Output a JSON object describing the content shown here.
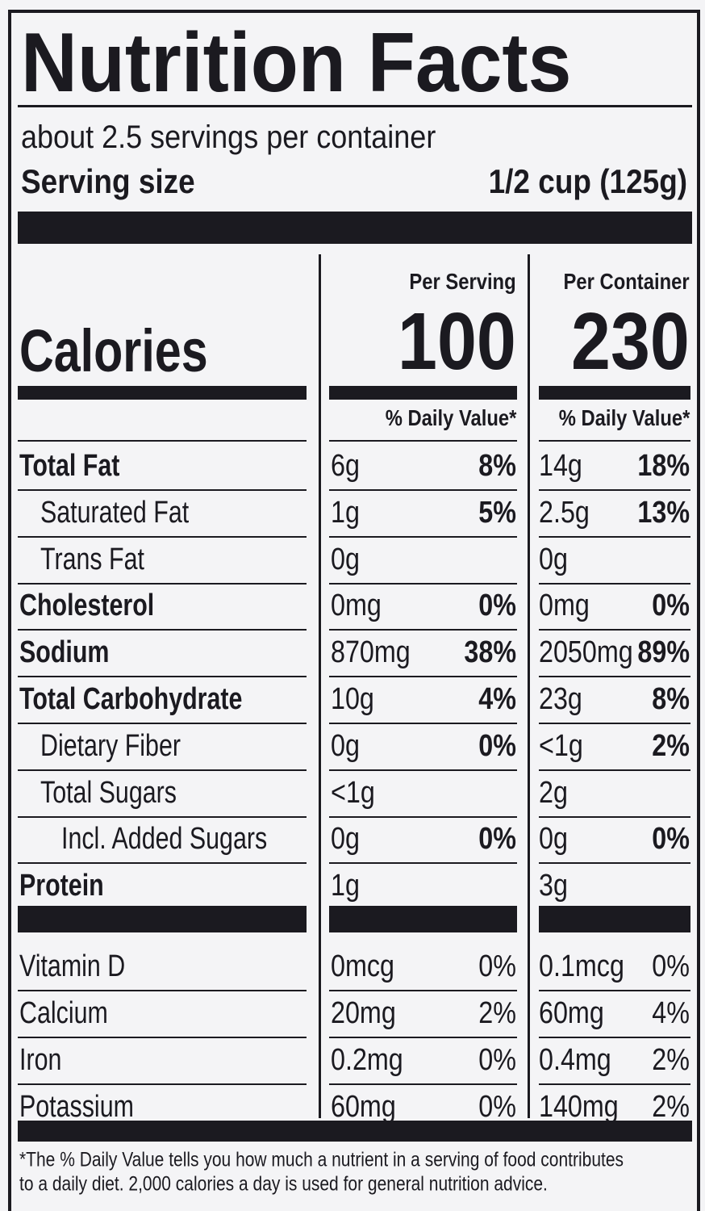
{
  "title": "Nutrition Facts",
  "servings": "about 2.5 servings per container",
  "serving_size": {
    "label": "Serving size",
    "value": "1/2 cup (125g)"
  },
  "calories_label": "Calories",
  "columns": [
    {
      "heading": "Per Serving",
      "calories": 100,
      "dv_heading": "% Daily Value*"
    },
    {
      "heading": "Per Container",
      "calories": 230,
      "dv_heading": "% Daily Value*"
    }
  ],
  "nutrients": [
    {
      "name": "Total Fat",
      "bold": true,
      "indent": 0,
      "per_serving": [
        "6g",
        "8%"
      ],
      "per_container": [
        "14g",
        "18%"
      ]
    },
    {
      "name": "Saturated Fat",
      "bold": false,
      "indent": 1,
      "per_serving": [
        "1g",
        "5%"
      ],
      "per_container": [
        "2.5g",
        "13%"
      ]
    },
    {
      "name": "Trans Fat",
      "bold": false,
      "indent": 1,
      "per_serving": [
        "0g"
      ],
      "per_container": [
        "0g"
      ]
    },
    {
      "name": "Cholesterol",
      "bold": true,
      "indent": 0,
      "per_serving": [
        "0mg",
        "0%"
      ],
      "per_container": [
        "0mg",
        "0%"
      ]
    },
    {
      "name": "Sodium",
      "bold": true,
      "indent": 0,
      "per_serving": [
        "870mg",
        "38%"
      ],
      "per_container": [
        "2050mg",
        "89%"
      ]
    },
    {
      "name": "Total Carbohydrate",
      "bold": true,
      "indent": 0,
      "per_serving": [
        "10g",
        "4%"
      ],
      "per_container": [
        "23g",
        "8%"
      ]
    },
    {
      "name": "Dietary Fiber",
      "bold": false,
      "indent": 1,
      "per_serving": [
        "0g",
        "0%"
      ],
      "per_container": [
        "<1g",
        "2%"
      ]
    },
    {
      "name": "Total Sugars",
      "bold": false,
      "indent": 1,
      "per_serving": [
        "<1g"
      ],
      "per_container": [
        "2g"
      ]
    },
    {
      "name": "Incl. Added Sugars",
      "bold": false,
      "indent": 2,
      "per_serving": [
        "0g",
        "0%"
      ],
      "per_container": [
        "0g",
        "0%"
      ]
    },
    {
      "name": "Protein",
      "bold": true,
      "indent": 0,
      "per_serving": [
        "1g"
      ],
      "per_container": [
        "3g"
      ]
    }
  ],
  "vitamins": [
    {
      "name": "Vitamin D",
      "per_serving": [
        "0mcg",
        "0%"
      ],
      "per_container": [
        "0.1mcg",
        "0%"
      ]
    },
    {
      "name": "Calcium",
      "per_serving": [
        "20mg",
        "2%"
      ],
      "per_container": [
        "60mg",
        "4%"
      ]
    },
    {
      "name": "Iron",
      "per_serving": [
        "0.2mg",
        "0%"
      ],
      "per_container": [
        "0.4mg",
        "2%"
      ]
    },
    {
      "name": "Potassium",
      "per_serving": [
        "60mg",
        "0%"
      ],
      "per_container": [
        "140mg",
        "2%"
      ]
    }
  ],
  "footnote": [
    "*The % Daily Value tells you how much a nutrient in a serving of food contributes",
    "to a daily diet. 2,000 calories a day is used for general nutrition advice."
  ]
}
